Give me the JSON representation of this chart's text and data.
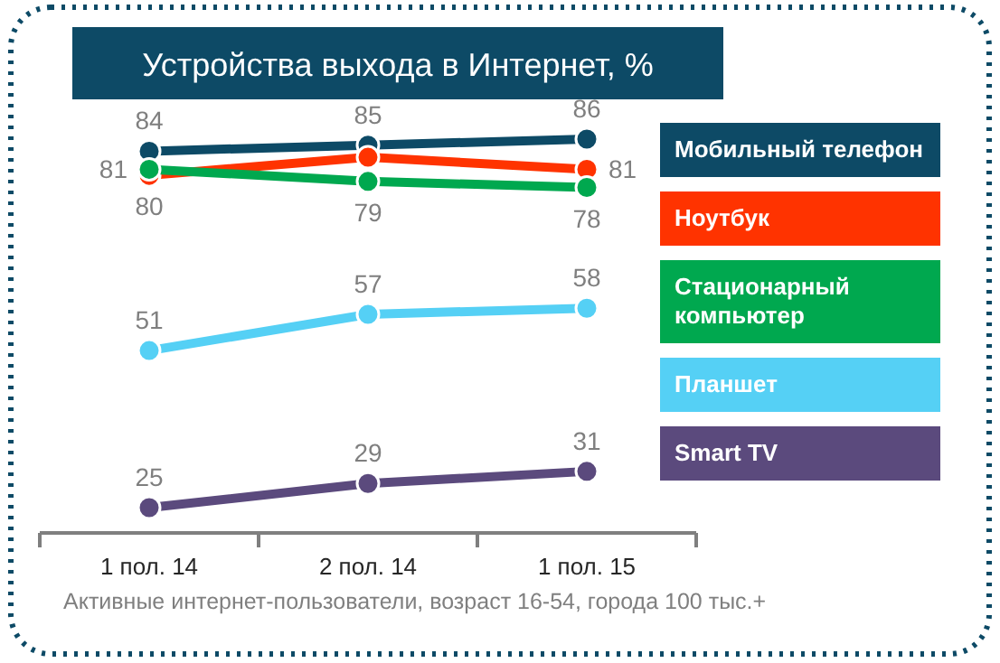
{
  "chart_data": {
    "type": "line",
    "title": "Устройства выхода в Интернет, %",
    "categories": [
      "1 пол. 14",
      "2 пол. 14",
      "1 пол. 15"
    ],
    "series": [
      {
        "name": "Мобильный телефон",
        "color": "#0d4a66",
        "values": [
          84,
          85,
          86
        ],
        "value_labels": [
          "84",
          "85",
          "86"
        ]
      },
      {
        "name": "Ноутбук",
        "color": "#ff3300",
        "values": [
          80,
          83,
          81
        ],
        "value_labels": [
          "80",
          null,
          "81"
        ]
      },
      {
        "name": "Стационарный компьютер",
        "color": "#00a84f",
        "values": [
          81,
          79,
          78
        ],
        "value_labels": [
          "81",
          "79",
          "78"
        ]
      },
      {
        "name": "Планшет",
        "color": "#55d0f5",
        "values": [
          51,
          57,
          58
        ],
        "value_labels": [
          "51",
          "57",
          "58"
        ]
      },
      {
        "name": "Smart TV",
        "color": "#5b4a7d",
        "values": [
          25,
          29,
          31
        ],
        "value_labels": [
          "25",
          "29",
          "31"
        ]
      }
    ],
    "legend": "right",
    "marker": "circle",
    "line_style": "solid",
    "annotations": [
      "Активные интернет-пользователи, возраст 16-54, города 100 тыс.+"
    ]
  }
}
